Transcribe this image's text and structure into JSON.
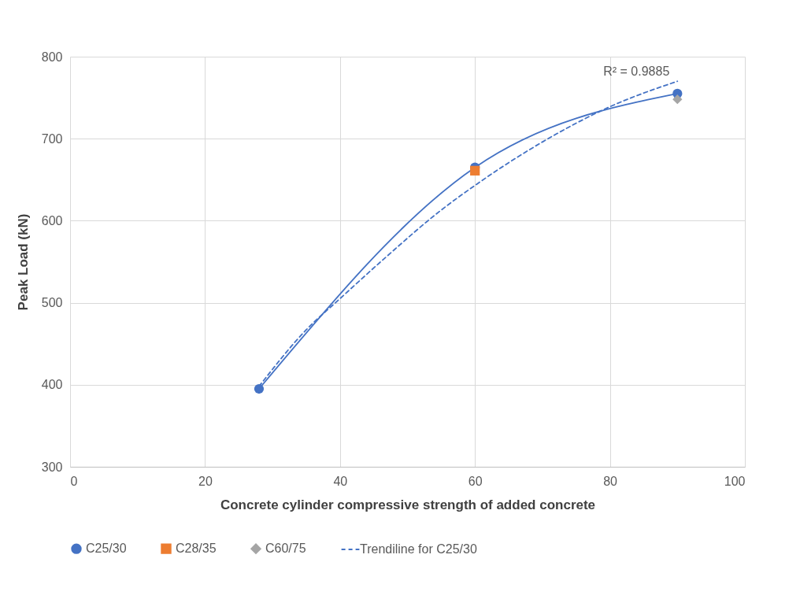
{
  "chart_data": {
    "type": "line",
    "xlabel": "Concrete cylinder compressive strength of added concrete",
    "ylabel": "Peak Load (kN)",
    "xlim": [
      0,
      100
    ],
    "xticks": [
      0,
      20,
      40,
      60,
      80,
      100
    ],
    "ylim": [
      300,
      800
    ],
    "yticks": [
      300,
      400,
      500,
      600,
      700,
      800
    ],
    "grid": true,
    "legend": "bottom",
    "series": [
      {
        "name": "C25/30",
        "color": "#4472c4",
        "x": [
          28,
          60,
          90
        ],
        "values": [
          395,
          665,
          755
        ],
        "marker": "circle",
        "line_style": "solid"
      },
      {
        "name": "C28/35",
        "color": "#ed7d31",
        "x": [
          60
        ],
        "values": [
          661
        ],
        "marker": "square",
        "line_style": "solid"
      },
      {
        "name": "C60/75",
        "color": "#a5a5a5",
        "x": [
          90
        ],
        "values": [
          748
        ],
        "marker": "diamond",
        "line_style": "solid"
      },
      {
        "name": "Trendiline for C25/30",
        "color": "#4472c4",
        "x": [
          28,
          35,
          40,
          47,
          55,
          60,
          70,
          80,
          90
        ],
        "values": [
          398,
          467,
          505,
          557,
          613,
          643,
          696,
          739,
          770
        ],
        "marker": "none",
        "line_style": "dashed"
      }
    ],
    "annotations": [
      {
        "text": "R² = 0.9885",
        "x": 90,
        "y": 770
      }
    ]
  }
}
